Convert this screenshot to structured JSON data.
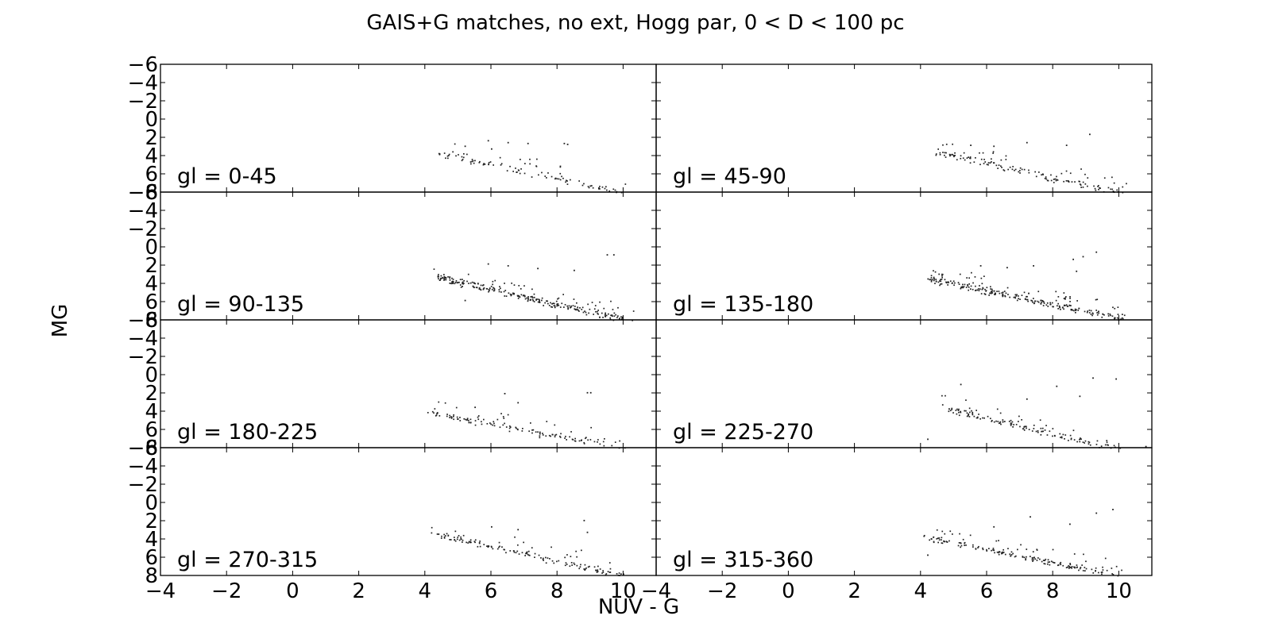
{
  "chart_data": {
    "type": "scatter",
    "title": "GAIS+G matches, no ext, Hogg par, 0 < D < 100 pc",
    "xlabel": "NUV - G",
    "ylabel": "MG",
    "xlim": [
      -4,
      11
    ],
    "ylim": [
      -6,
      8
    ],
    "y_inverted": true,
    "grid": false,
    "layout": "4 rows x 2 columns, shared axes",
    "x_ticks": [
      "−4",
      "−2",
      "0",
      "2",
      "4",
      "6",
      "8",
      "10"
    ],
    "y_ticks": [
      "−6",
      "−4",
      "−2",
      "0",
      "2",
      "4",
      "6",
      "8"
    ],
    "color": "#222222",
    "panels": [
      {
        "label": "gl = 0-45",
        "trend": {
          "x": [
            4.5,
            10.0
          ],
          "y": [
            3.8,
            8.0
          ]
        },
        "outliers": [
          [
            5.9,
            2.3
          ],
          [
            6.5,
            2.5
          ],
          [
            7.1,
            2.6
          ],
          [
            8.2,
            2.6
          ],
          [
            5.2,
            2.9
          ],
          [
            6.0,
            3.2
          ],
          [
            8.3,
            2.7
          ]
        ],
        "density": 0.7
      },
      {
        "label": "gl = 45-90",
        "trend": {
          "x": [
            4.5,
            10.2
          ],
          "y": [
            3.6,
            8.2
          ]
        },
        "outliers": [
          [
            7.2,
            2.5
          ],
          [
            8.4,
            2.8
          ],
          [
            9.1,
            1.6
          ],
          [
            5.5,
            2.8
          ],
          [
            6.2,
            2.9
          ]
        ],
        "density": 1.0
      },
      {
        "label": "gl = 90-135",
        "trend": {
          "x": [
            4.4,
            10.1
          ],
          "y": [
            3.3,
            8.0
          ]
        },
        "outliers": [
          [
            9.5,
            0.8
          ],
          [
            9.7,
            0.8
          ],
          [
            8.5,
            2.5
          ],
          [
            7.4,
            2.3
          ],
          [
            6.5,
            2.0
          ],
          [
            5.9,
            1.8
          ],
          [
            5.2,
            5.8
          ]
        ],
        "density": 1.8
      },
      {
        "label": "gl = 135-180",
        "trend": {
          "x": [
            4.3,
            10.3
          ],
          "y": [
            3.5,
            8.0
          ]
        },
        "outliers": [
          [
            9.3,
            0.5
          ],
          [
            8.9,
            1.0
          ],
          [
            8.6,
            1.3
          ],
          [
            8.7,
            2.6
          ],
          [
            7.4,
            2.0
          ],
          [
            6.6,
            2.2
          ],
          [
            5.8,
            2.0
          ]
        ],
        "density": 1.8
      },
      {
        "label": "gl = 180-225",
        "trend": {
          "x": [
            4.2,
            10.0
          ],
          "y": [
            4.2,
            8.0
          ]
        },
        "outliers": [
          [
            8.9,
            1.9
          ],
          [
            9.0,
            1.9
          ],
          [
            6.4,
            2.0
          ],
          [
            5.5,
            3.5
          ],
          [
            6.8,
            3.0
          ]
        ],
        "density": 0.9
      },
      {
        "label": "gl = 225-270",
        "trend": {
          "x": [
            4.7,
            10.0
          ],
          "y": [
            3.6,
            8.2
          ]
        },
        "outliers": [
          [
            4.2,
            7.0
          ],
          [
            5.2,
            1.0
          ],
          [
            8.1,
            1.2
          ],
          [
            9.2,
            0.3
          ],
          [
            9.9,
            0.4
          ],
          [
            8.8,
            2.3
          ],
          [
            7.2,
            2.6
          ],
          [
            10.8,
            7.8
          ]
        ],
        "density": 1.0
      },
      {
        "label": "gl = 270-315",
        "trend": {
          "x": [
            4.4,
            10.0
          ],
          "y": [
            3.5,
            8.0
          ]
        },
        "outliers": [
          [
            8.8,
            1.9
          ],
          [
            8.9,
            3.2
          ],
          [
            4.4,
            3.4
          ],
          [
            6.0,
            2.6
          ],
          [
            6.8,
            2.9
          ]
        ],
        "density": 1.0
      },
      {
        "label": "gl = 315-360",
        "trend": {
          "x": [
            4.3,
            10.0
          ],
          "y": [
            3.9,
            8.0
          ]
        },
        "outliers": [
          [
            7.3,
            1.5
          ],
          [
            8.5,
            2.3
          ],
          [
            9.3,
            1.1
          ],
          [
            9.8,
            0.7
          ],
          [
            4.2,
            5.7
          ],
          [
            6.2,
            2.6
          ]
        ],
        "density": 1.2
      }
    ]
  }
}
